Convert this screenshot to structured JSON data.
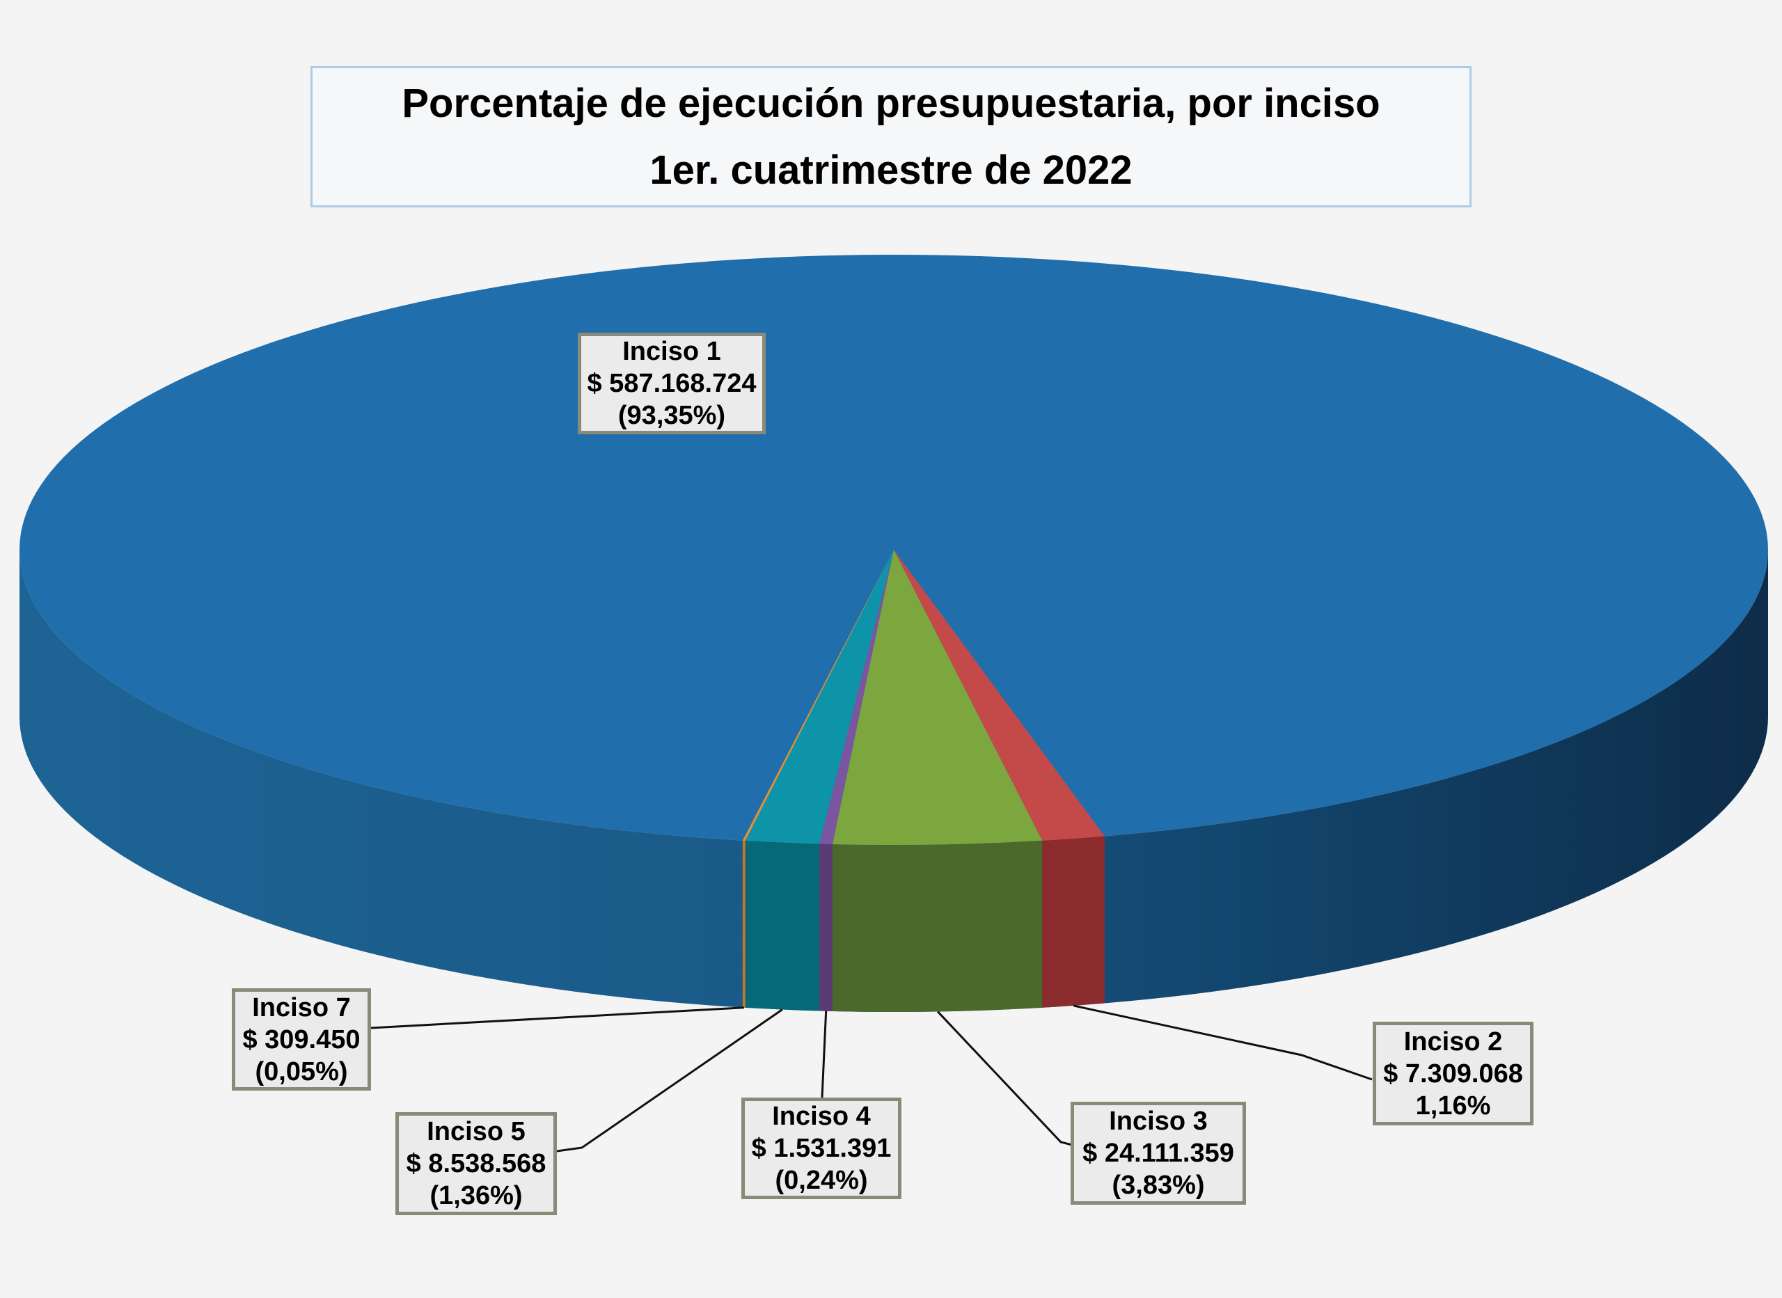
{
  "chart_data": {
    "type": "pie",
    "style3d": true,
    "title_line1": "Porcentaje de ejecución presupuestaria, por inciso",
    "title_line2": "1er. cuatrimestre de 2022",
    "slices": [
      {
        "label": "Inciso 1",
        "amount_label": "$ 587.168.724",
        "pct_label": "(93,35%)",
        "value": 587168724,
        "pct": 93.35,
        "top_color": "#206FAC",
        "side_color": "#17517D"
      },
      {
        "label": "Inciso 2",
        "amount_label": "$ 7.309.068",
        "pct_label": "1,16%",
        "value": 7309068,
        "pct": 1.16,
        "top_color": "#C44A4A",
        "side_color": "#8B2B2D"
      },
      {
        "label": "Inciso 3",
        "amount_label": "$ 24.111.359",
        "pct_label": "(3,83%)",
        "value": 24111359,
        "pct": 3.83,
        "top_color": "#7CA73F",
        "side_color": "#4A692B"
      },
      {
        "label": "Inciso 4",
        "amount_label": "$ 1.531.391",
        "pct_label": "(0,24%)",
        "value": 1531391,
        "pct": 0.24,
        "top_color": "#7A56A0",
        "side_color": "#5A3C74"
      },
      {
        "label": "Inciso 5",
        "amount_label": "$ 8.538.568",
        "pct_label": "(1,36%)",
        "value": 8538568,
        "pct": 1.36,
        "top_color": "#0D94A9",
        "side_color": "#076878"
      },
      {
        "label": "Inciso 7",
        "amount_label": "$ 309.450",
        "pct_label": "(0,05%)",
        "value": 309450,
        "pct": 0.05,
        "top_color": "#E88E35",
        "side_color": "#C97526"
      }
    ],
    "front_order_clockwise": [
      "Inciso 7",
      "Inciso 5",
      "Inciso 4",
      "Inciso 3",
      "Inciso 2"
    ],
    "legend": "none",
    "colors": {
      "background": "#F4F4F4",
      "main_side_gradient": [
        "#1D6495",
        "#1A5A88",
        "#12446B",
        "#0D2C49"
      ],
      "callout_bg": "#EBEBEB",
      "callout_border": "#8B8977",
      "title_border": "#AECBEA",
      "leader_line": "#111111",
      "text": "#000000"
    }
  }
}
